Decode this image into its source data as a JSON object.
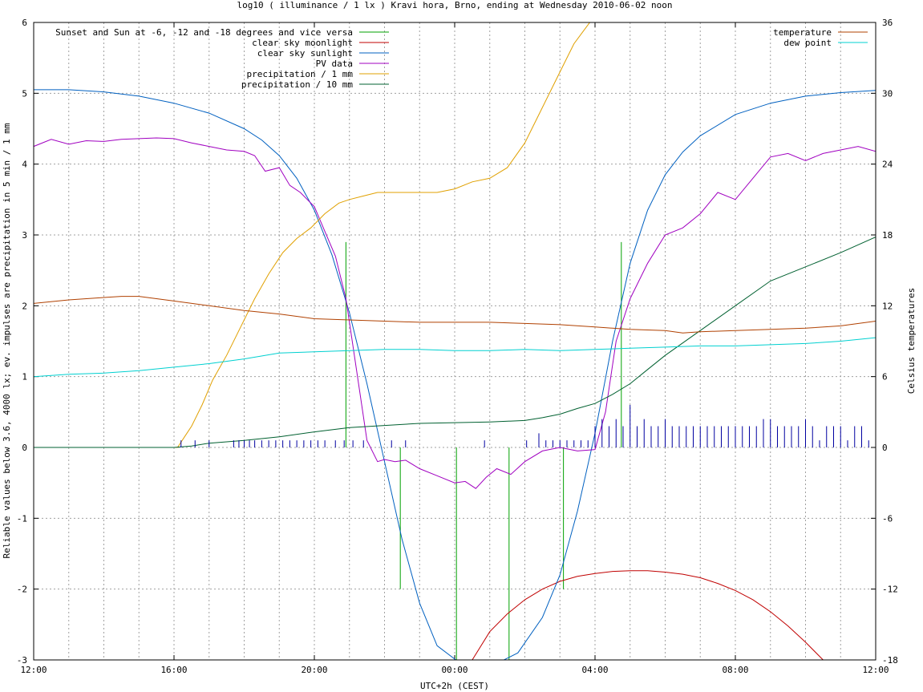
{
  "chart_data": {
    "type": "line",
    "title": "log10 ( illuminance / 1 lx ) Kravi hora, Brno, ending at Wednesday 2010-06-02 noon",
    "xlabel": "UTC+2h (CEST)",
    "ylabel": "Reliable values below 3.6, 4000 lx; ev. impulses are precipitation in 5 min / 1 mm",
    "y2label": "Celsius temperatures",
    "x_unit": "hours from 12:00 on 2010-06-01 (UTC+2h)",
    "xlim": [
      0,
      24
    ],
    "ylim": [
      -3,
      6
    ],
    "y2lim": [
      -18,
      36
    ],
    "x_ticks": [
      {
        "x": 0,
        "label": "12:00"
      },
      {
        "x": 4,
        "label": "16:00"
      },
      {
        "x": 8,
        "label": "20:00"
      },
      {
        "x": 12,
        "label": "00:00"
      },
      {
        "x": 16,
        "label": "04:00"
      },
      {
        "x": 20,
        "label": "08:00"
      },
      {
        "x": 24,
        "label": "12:00"
      }
    ],
    "y_ticks": [
      "-3",
      "-2",
      "-1",
      "0",
      "1",
      "2",
      "3",
      "4",
      "5",
      "6"
    ],
    "y2_ticks": [
      "-18",
      "-12",
      "-6",
      "0",
      "6",
      "12",
      "18",
      "24",
      "30",
      "36"
    ],
    "grid": true,
    "legend_left": "top-left",
    "legend_right": "top-right",
    "series": [
      {
        "name": "Sunset and Sun at -6, -12 and -18 degrees and vice versa",
        "color": "#00a000",
        "axis": "y",
        "style": "vertical-marks",
        "marks": [
          {
            "x": 8.9,
            "y": [
              0,
              2.9
            ]
          },
          {
            "x": 10.45,
            "y": [
              -2,
              0
            ]
          },
          {
            "x": 12.05,
            "y": [
              -3,
              0
            ]
          },
          {
            "x": 13.55,
            "y": [
              -3,
              0
            ]
          },
          {
            "x": 15.1,
            "y": [
              -2,
              0
            ]
          },
          {
            "x": 16.75,
            "y": [
              0,
              2.9
            ]
          }
        ]
      },
      {
        "name": "clear sky moonlight",
        "color": "#c00000",
        "axis": "y",
        "x": [
          12.5,
          13.0,
          13.5,
          14.0,
          14.5,
          15.0,
          15.5,
          16.0,
          16.5,
          17.0,
          17.5,
          18.0,
          18.5,
          19.0,
          19.5,
          20.0,
          20.5,
          21.0,
          21.5,
          22.0,
          22.5
        ],
        "y": [
          -3.0,
          -2.6,
          -2.35,
          -2.15,
          -2.0,
          -1.89,
          -1.82,
          -1.78,
          -1.75,
          -1.74,
          -1.74,
          -1.76,
          -1.79,
          -1.84,
          -1.92,
          -2.02,
          -2.15,
          -2.32,
          -2.52,
          -2.75,
          -3.0
        ]
      },
      {
        "name": "clear sky sunlight",
        "color": "#0060c0",
        "axis": "y",
        "x": [
          0,
          1,
          2,
          3,
          4,
          5,
          6,
          6.5,
          7,
          7.5,
          8,
          8.5,
          9,
          9.5,
          10,
          10.5,
          11,
          11.5,
          12.3,
          13.0,
          13.8,
          14.5,
          15,
          15.5,
          16,
          16.5,
          17,
          17.5,
          18,
          18.5,
          19,
          20,
          21,
          22,
          23,
          24
        ],
        "y": [
          5.05,
          5.05,
          5.02,
          4.96,
          4.86,
          4.72,
          4.5,
          4.34,
          4.12,
          3.8,
          3.35,
          2.72,
          1.9,
          0.9,
          -0.2,
          -1.3,
          -2.2,
          -2.8,
          -3.1,
          -3.1,
          -2.9,
          -2.4,
          -1.8,
          -0.9,
          0.2,
          1.5,
          2.6,
          3.35,
          3.85,
          4.17,
          4.4,
          4.7,
          4.86,
          4.96,
          5.01,
          5.04
        ]
      },
      {
        "name": "PV data",
        "color": "#a000c0",
        "axis": "y",
        "x": [
          0,
          0.5,
          1,
          1.5,
          2,
          2.5,
          3,
          3.5,
          4,
          4.5,
          5,
          5.5,
          6,
          6.3,
          6.6,
          7,
          7.3,
          7.6,
          8,
          8.3,
          8.6,
          8.9,
          9.2,
          9.5,
          9.8,
          10,
          10.3,
          10.6,
          11,
          11.5,
          12,
          12.3,
          12.6,
          12.9,
          13.2,
          13.6,
          14,
          14.5,
          15,
          15.5,
          16,
          16.3,
          16.6,
          17,
          17.5,
          18,
          18.5,
          19,
          19.5,
          20,
          20.5,
          21,
          21.5,
          22,
          22.5,
          23,
          23.5,
          24
        ],
        "y": [
          4.25,
          4.35,
          4.28,
          4.33,
          4.32,
          4.35,
          4.36,
          4.37,
          4.36,
          4.3,
          4.25,
          4.2,
          4.18,
          4.12,
          3.9,
          3.95,
          3.7,
          3.6,
          3.4,
          3.05,
          2.7,
          2.1,
          1.1,
          0.1,
          -0.2,
          -0.17,
          -0.2,
          -0.18,
          -0.3,
          -0.4,
          -0.5,
          -0.48,
          -0.58,
          -0.42,
          -0.3,
          -0.38,
          -0.2,
          -0.05,
          0.0,
          -0.05,
          -0.03,
          0.5,
          1.5,
          2.1,
          2.6,
          3.0,
          3.1,
          3.3,
          3.6,
          3.5,
          3.8,
          4.1,
          4.15,
          4.05,
          4.15,
          4.2,
          4.25,
          4.18
        ]
      },
      {
        "name": "precipitation / 1 mm",
        "color": "#e0a000",
        "axis": "y",
        "x": [
          0,
          4.1,
          4.3,
          4.5,
          4.8,
          5.1,
          5.5,
          5.9,
          6.3,
          6.7,
          7.1,
          7.5,
          7.9,
          8.3,
          8.7,
          9.0,
          9.4,
          9.8,
          10.2,
          10.6,
          11.0,
          11.5,
          12.0,
          12.5,
          13.0,
          13.5,
          14.0,
          14.5,
          14.8,
          15.1,
          15.4,
          15.7,
          16.0,
          16.3,
          16.6
        ],
        "y": [
          0,
          0,
          0.15,
          0.3,
          0.6,
          0.95,
          1.3,
          1.7,
          2.1,
          2.45,
          2.75,
          2.95,
          3.1,
          3.3,
          3.45,
          3.5,
          3.55,
          3.6,
          3.6,
          3.6,
          3.6,
          3.6,
          3.65,
          3.75,
          3.8,
          3.95,
          4.3,
          4.8,
          5.1,
          5.4,
          5.7,
          5.9,
          6.1,
          6.3,
          6.5
        ]
      },
      {
        "name": "precipitation / 10 mm",
        "color": "#006030",
        "axis": "y",
        "x": [
          0,
          4,
          4.5,
          5,
          6,
          7,
          8,
          9,
          10,
          11,
          12,
          13,
          14,
          14.5,
          15,
          15.5,
          16,
          16.5,
          17,
          17.5,
          18,
          19,
          20,
          21,
          22,
          23,
          24
        ],
        "y": [
          0,
          0,
          0.02,
          0.06,
          0.1,
          0.15,
          0.22,
          0.28,
          0.31,
          0.34,
          0.35,
          0.36,
          0.38,
          0.42,
          0.47,
          0.55,
          0.62,
          0.75,
          0.9,
          1.1,
          1.3,
          1.65,
          2.0,
          2.35,
          2.55,
          2.75,
          2.97
        ]
      },
      {
        "name": "temperature",
        "color": "#b04000",
        "axis": "y2",
        "x": [
          0,
          1,
          2,
          2.5,
          3,
          3.5,
          4,
          5,
          6,
          7,
          8,
          9,
          10,
          11,
          12,
          13,
          14,
          15,
          16,
          17,
          18,
          18.5,
          19,
          20,
          21,
          22,
          23,
          24
        ],
        "y": [
          12.2,
          12.5,
          12.7,
          12.8,
          12.8,
          12.6,
          12.4,
          12.0,
          11.6,
          11.3,
          10.9,
          10.8,
          10.7,
          10.6,
          10.6,
          10.6,
          10.5,
          10.4,
          10.2,
          10.0,
          9.9,
          9.7,
          9.8,
          9.9,
          10.0,
          10.1,
          10.3,
          10.7
        ]
      },
      {
        "name": "dew point",
        "color": "#00d0d0",
        "axis": "y2",
        "x": [
          0,
          1,
          2,
          3,
          4,
          5,
          6,
          7,
          8,
          9,
          10,
          11,
          12,
          13,
          14,
          15,
          16,
          17,
          18,
          19,
          20,
          21,
          22,
          23,
          24
        ],
        "y": [
          6.0,
          6.2,
          6.3,
          6.5,
          6.8,
          7.1,
          7.5,
          8.0,
          8.1,
          8.2,
          8.3,
          8.3,
          8.2,
          8.2,
          8.3,
          8.2,
          8.3,
          8.4,
          8.5,
          8.6,
          8.6,
          8.7,
          8.8,
          9.0,
          9.3
        ]
      },
      {
        "name": "",
        "color": "#0000a0",
        "axis": "y",
        "style": "impulses",
        "x": [
          4.2,
          4.6,
          5.0,
          5.7,
          5.85,
          6.0,
          6.15,
          6.3,
          6.5,
          6.7,
          6.9,
          7.1,
          7.3,
          7.5,
          7.7,
          7.9,
          8.1,
          8.3,
          8.6,
          8.85,
          9.1,
          9.4,
          10.2,
          10.6,
          12.85,
          14.05,
          14.4,
          14.6,
          14.8,
          15.0,
          15.2,
          15.4,
          15.6,
          15.8,
          16.0,
          16.2,
          16.4,
          16.6,
          16.8,
          17.0,
          17.2,
          17.4,
          17.6,
          17.8,
          18.0,
          18.2,
          18.4,
          18.6,
          18.8,
          19.0,
          19.2,
          19.4,
          19.6,
          19.8,
          20.0,
          20.2,
          20.4,
          20.6,
          20.8,
          21.0,
          21.2,
          21.4,
          21.6,
          21.8,
          22.0,
          22.2,
          22.4,
          22.6,
          22.8,
          23.0,
          23.2,
          23.4,
          23.6,
          23.8,
          24.0
        ],
        "y": [
          0.1,
          0.1,
          0.1,
          0.1,
          0.1,
          0.1,
          0.1,
          0.1,
          0.1,
          0.1,
          0.1,
          0.1,
          0.1,
          0.1,
          0.1,
          0.1,
          0.1,
          0.1,
          0.1,
          0.1,
          0.1,
          0.1,
          0.1,
          0.1,
          0.1,
          0.1,
          0.2,
          0.1,
          0.1,
          0.1,
          0.1,
          0.1,
          0.1,
          0.1,
          0.3,
          0.4,
          0.3,
          0.4,
          0.3,
          0.6,
          0.3,
          0.4,
          0.3,
          0.3,
          0.4,
          0.3,
          0.3,
          0.3,
          0.3,
          0.3,
          0.3,
          0.3,
          0.3,
          0.3,
          0.3,
          0.3,
          0.3,
          0.3,
          0.4,
          0.4,
          0.3,
          0.3,
          0.3,
          0.3,
          0.4,
          0.3,
          0.1,
          0.3,
          0.3,
          0.3,
          0.1,
          0.3,
          0.3,
          0.1,
          0.1
        ]
      }
    ]
  }
}
